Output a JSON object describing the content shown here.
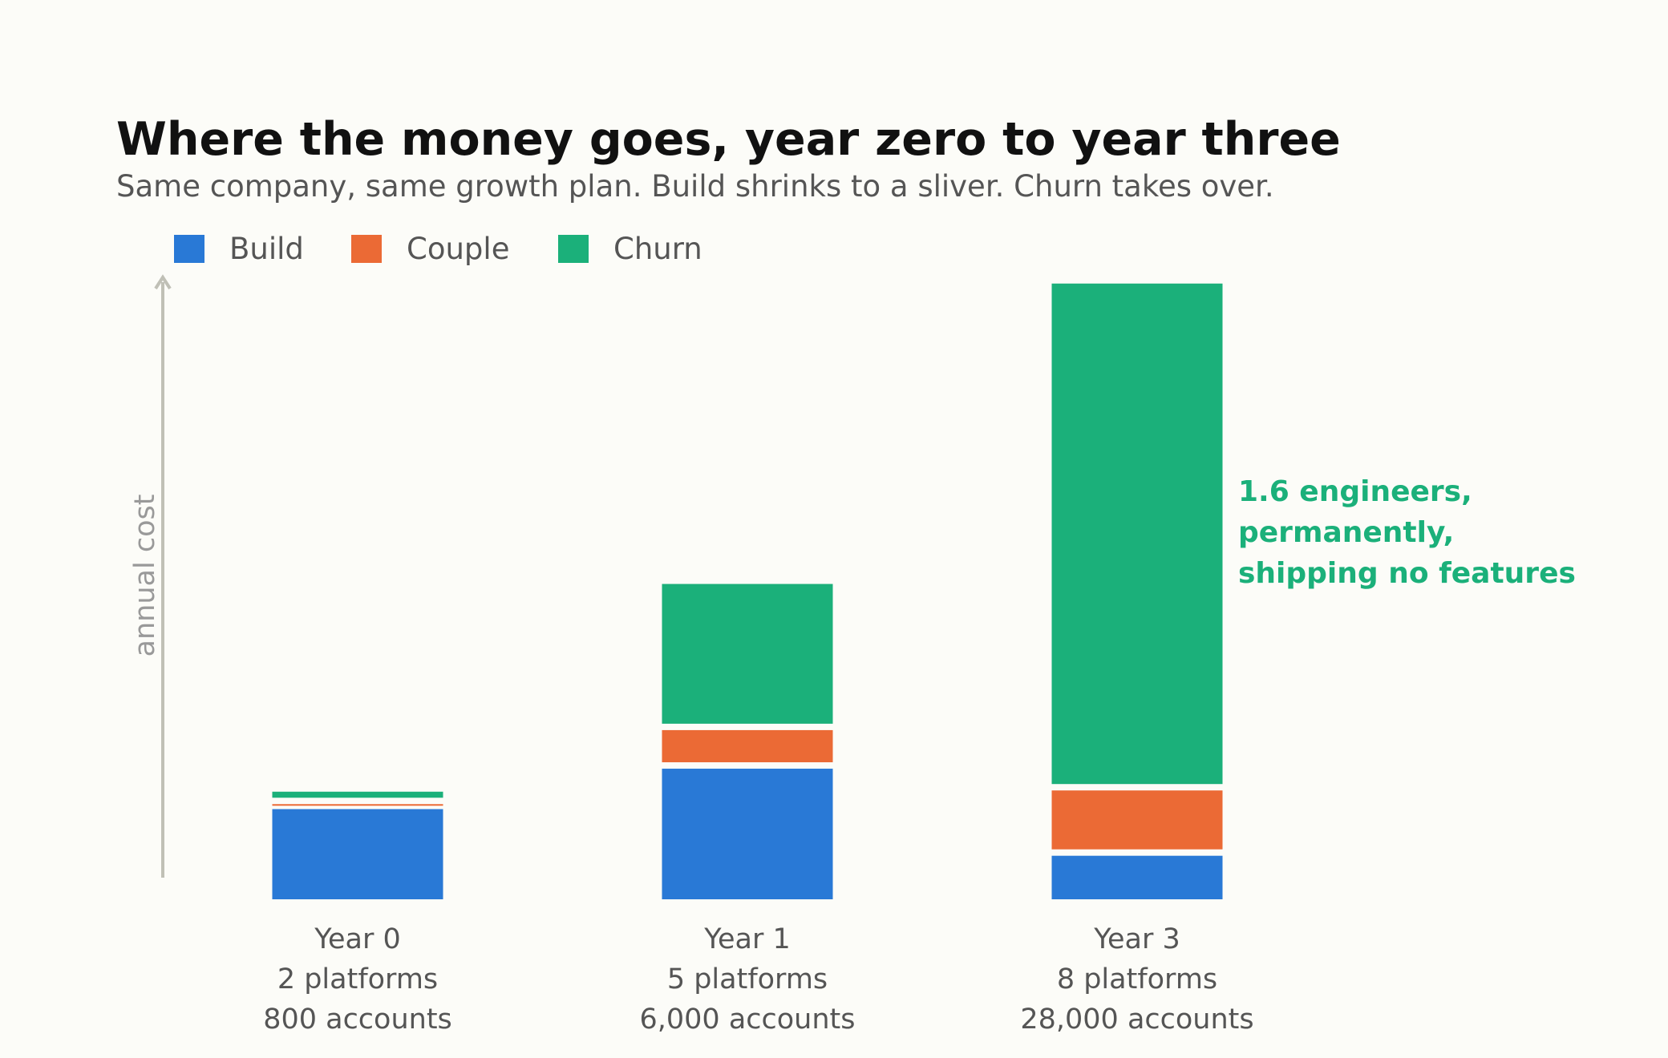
{
  "chart_data": {
    "type": "bar",
    "stacked": true,
    "title": "Where the money goes, year zero to year three",
    "subtitle": "Same company, same growth plan. Build shrinks to a sliver. Churn takes over.",
    "ylabel": "annual cost",
    "ylim": [
      0,
      1000
    ],
    "y_ticks_shown": false,
    "grid": false,
    "legend_position": "top-left",
    "categories": [
      {
        "lines": [
          "Year 0",
          "2 platforms",
          "800 accounts"
        ]
      },
      {
        "lines": [
          "Year 1",
          "5 platforms",
          "6,000 accounts"
        ]
      },
      {
        "lines": [
          "Year 3",
          "8 platforms",
          "28,000 accounts"
        ]
      }
    ],
    "series": [
      {
        "name": "Build",
        "color": "#2979d6",
        "values": [
          145,
          210,
          70
        ]
      },
      {
        "name": "Couple",
        "color": "#eb6a35",
        "values": [
          8,
          62,
          105
        ]
      },
      {
        "name": "Churn",
        "color": "#1bb07a",
        "values": [
          20,
          235,
          815
        ]
      }
    ],
    "annotation": {
      "lines": [
        "1.6 engineers,",
        "permanently,",
        "shipping no features"
      ],
      "color": "#1bb07a"
    },
    "axis_color": "#c0c0b6"
  }
}
